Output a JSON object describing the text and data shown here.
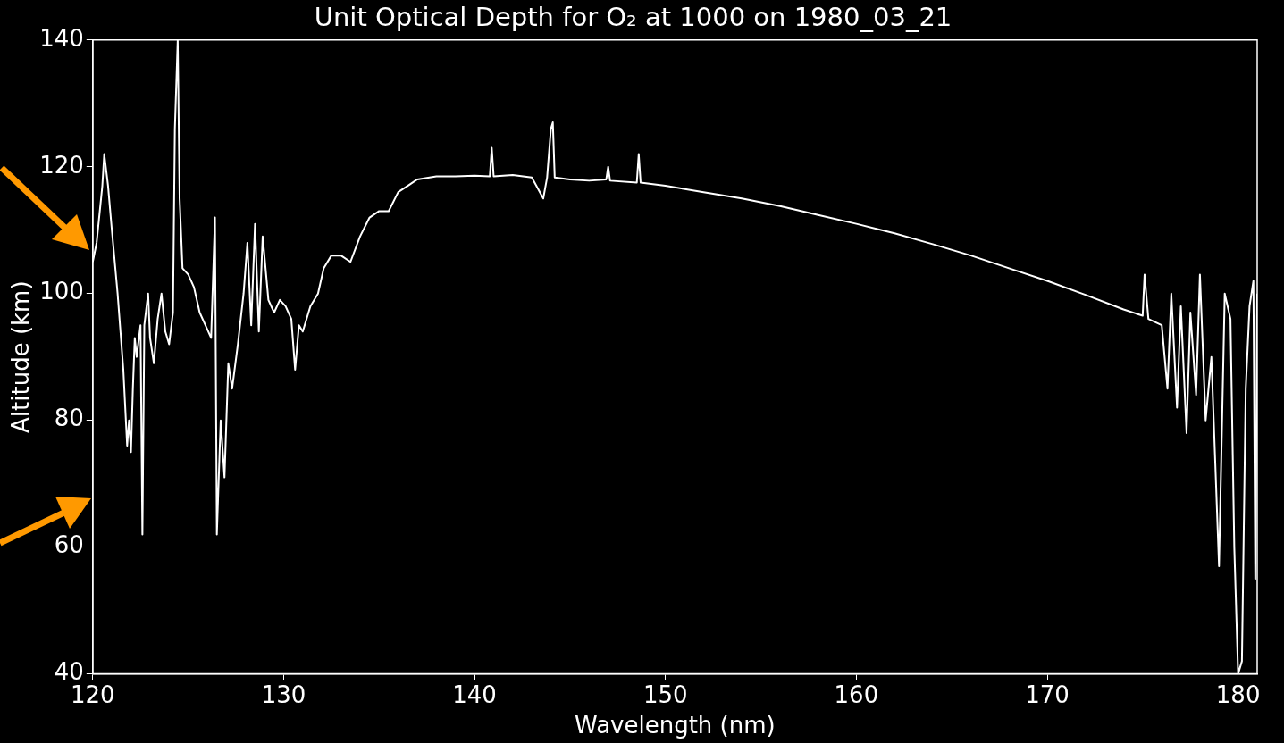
{
  "chart_data": {
    "type": "line",
    "title": "Unit Optical Depth for O₂ at 1000 on 1980_03_21",
    "xlabel": "Wavelength (nm)",
    "ylabel": "Altitude (km)",
    "xlim": [
      120,
      181
    ],
    "xticks": [
      120,
      130,
      140,
      150,
      160,
      170,
      180
    ],
    "ylim": [
      40,
      140
    ],
    "yticks": [
      40,
      60,
      80,
      100,
      120,
      140
    ],
    "grid": false,
    "legend": false,
    "marker": "none",
    "line_style": "solid",
    "series": [
      {
        "color": "#ffffff",
        "x": [
          120.0,
          120.2,
          120.5,
          120.6,
          120.8,
          121.0,
          121.3,
          121.6,
          121.8,
          121.9,
          122.0,
          122.1,
          122.2,
          122.3,
          122.5,
          122.6,
          122.7,
          122.9,
          123.0,
          123.2,
          123.4,
          123.6,
          123.8,
          124.0,
          124.2,
          124.3,
          124.45,
          124.55,
          124.7,
          125.0,
          125.3,
          125.6,
          125.9,
          126.2,
          126.4,
          126.5,
          126.7,
          126.9,
          127.1,
          127.3,
          127.6,
          127.9,
          128.1,
          128.3,
          128.5,
          128.7,
          128.9,
          129.2,
          129.5,
          129.8,
          130.1,
          130.4,
          130.6,
          130.8,
          131.0,
          131.4,
          131.8,
          132.1,
          132.5,
          133.0,
          133.5,
          134.0,
          134.5,
          135.0,
          135.5,
          136.0,
          136.5,
          137.0,
          138.0,
          139.0,
          140.0,
          140.8,
          140.9,
          141.0,
          142.0,
          143.0,
          143.6,
          143.8,
          144.0,
          144.1,
          144.2,
          145.0,
          146.0,
          146.9,
          147.0,
          147.1,
          148.5,
          148.6,
          148.7,
          150.0,
          152.0,
          154.0,
          156.0,
          158.0,
          160.0,
          162.0,
          164.0,
          166.0,
          168.0,
          170.0,
          172.0,
          174.0,
          175.0,
          175.1,
          175.3,
          176.0,
          176.3,
          176.5,
          176.8,
          177.0,
          177.3,
          177.5,
          177.8,
          178.0,
          178.3,
          178.6,
          179.0,
          179.3,
          179.6,
          179.8,
          180.0,
          180.2,
          180.4,
          180.6,
          180.8,
          180.9,
          181.0
        ],
        "values": [
          105,
          108,
          117,
          122,
          117,
          110,
          100,
          88,
          76,
          80,
          75,
          85,
          93,
          90,
          95,
          62,
          95,
          100,
          93,
          89,
          96,
          100,
          94,
          92,
          97,
          126,
          140,
          115,
          104,
          103,
          101,
          97,
          95,
          93,
          112,
          62,
          80,
          71,
          89,
          85,
          92,
          100,
          108,
          95,
          111,
          94,
          109,
          99,
          97,
          99,
          98,
          96,
          88,
          95,
          94,
          98,
          100,
          104,
          106,
          106,
          105,
          109,
          112,
          113,
          113,
          116,
          117,
          118,
          118.5,
          118.5,
          118.6,
          118.5,
          123,
          118.5,
          118.7,
          118.3,
          115,
          118.3,
          126,
          127,
          118.3,
          118,
          117.8,
          118,
          120,
          117.8,
          117.5,
          122,
          117.5,
          117,
          116,
          115,
          113.8,
          112.4,
          111,
          109.5,
          107.8,
          106,
          104,
          102,
          99.8,
          97.5,
          96.5,
          103,
          96,
          95,
          85,
          100,
          82,
          98,
          78,
          97,
          84,
          103,
          80,
          90,
          57,
          100,
          96,
          60,
          40,
          42,
          85,
          98,
          102,
          55,
          100
        ]
      }
    ]
  }
}
